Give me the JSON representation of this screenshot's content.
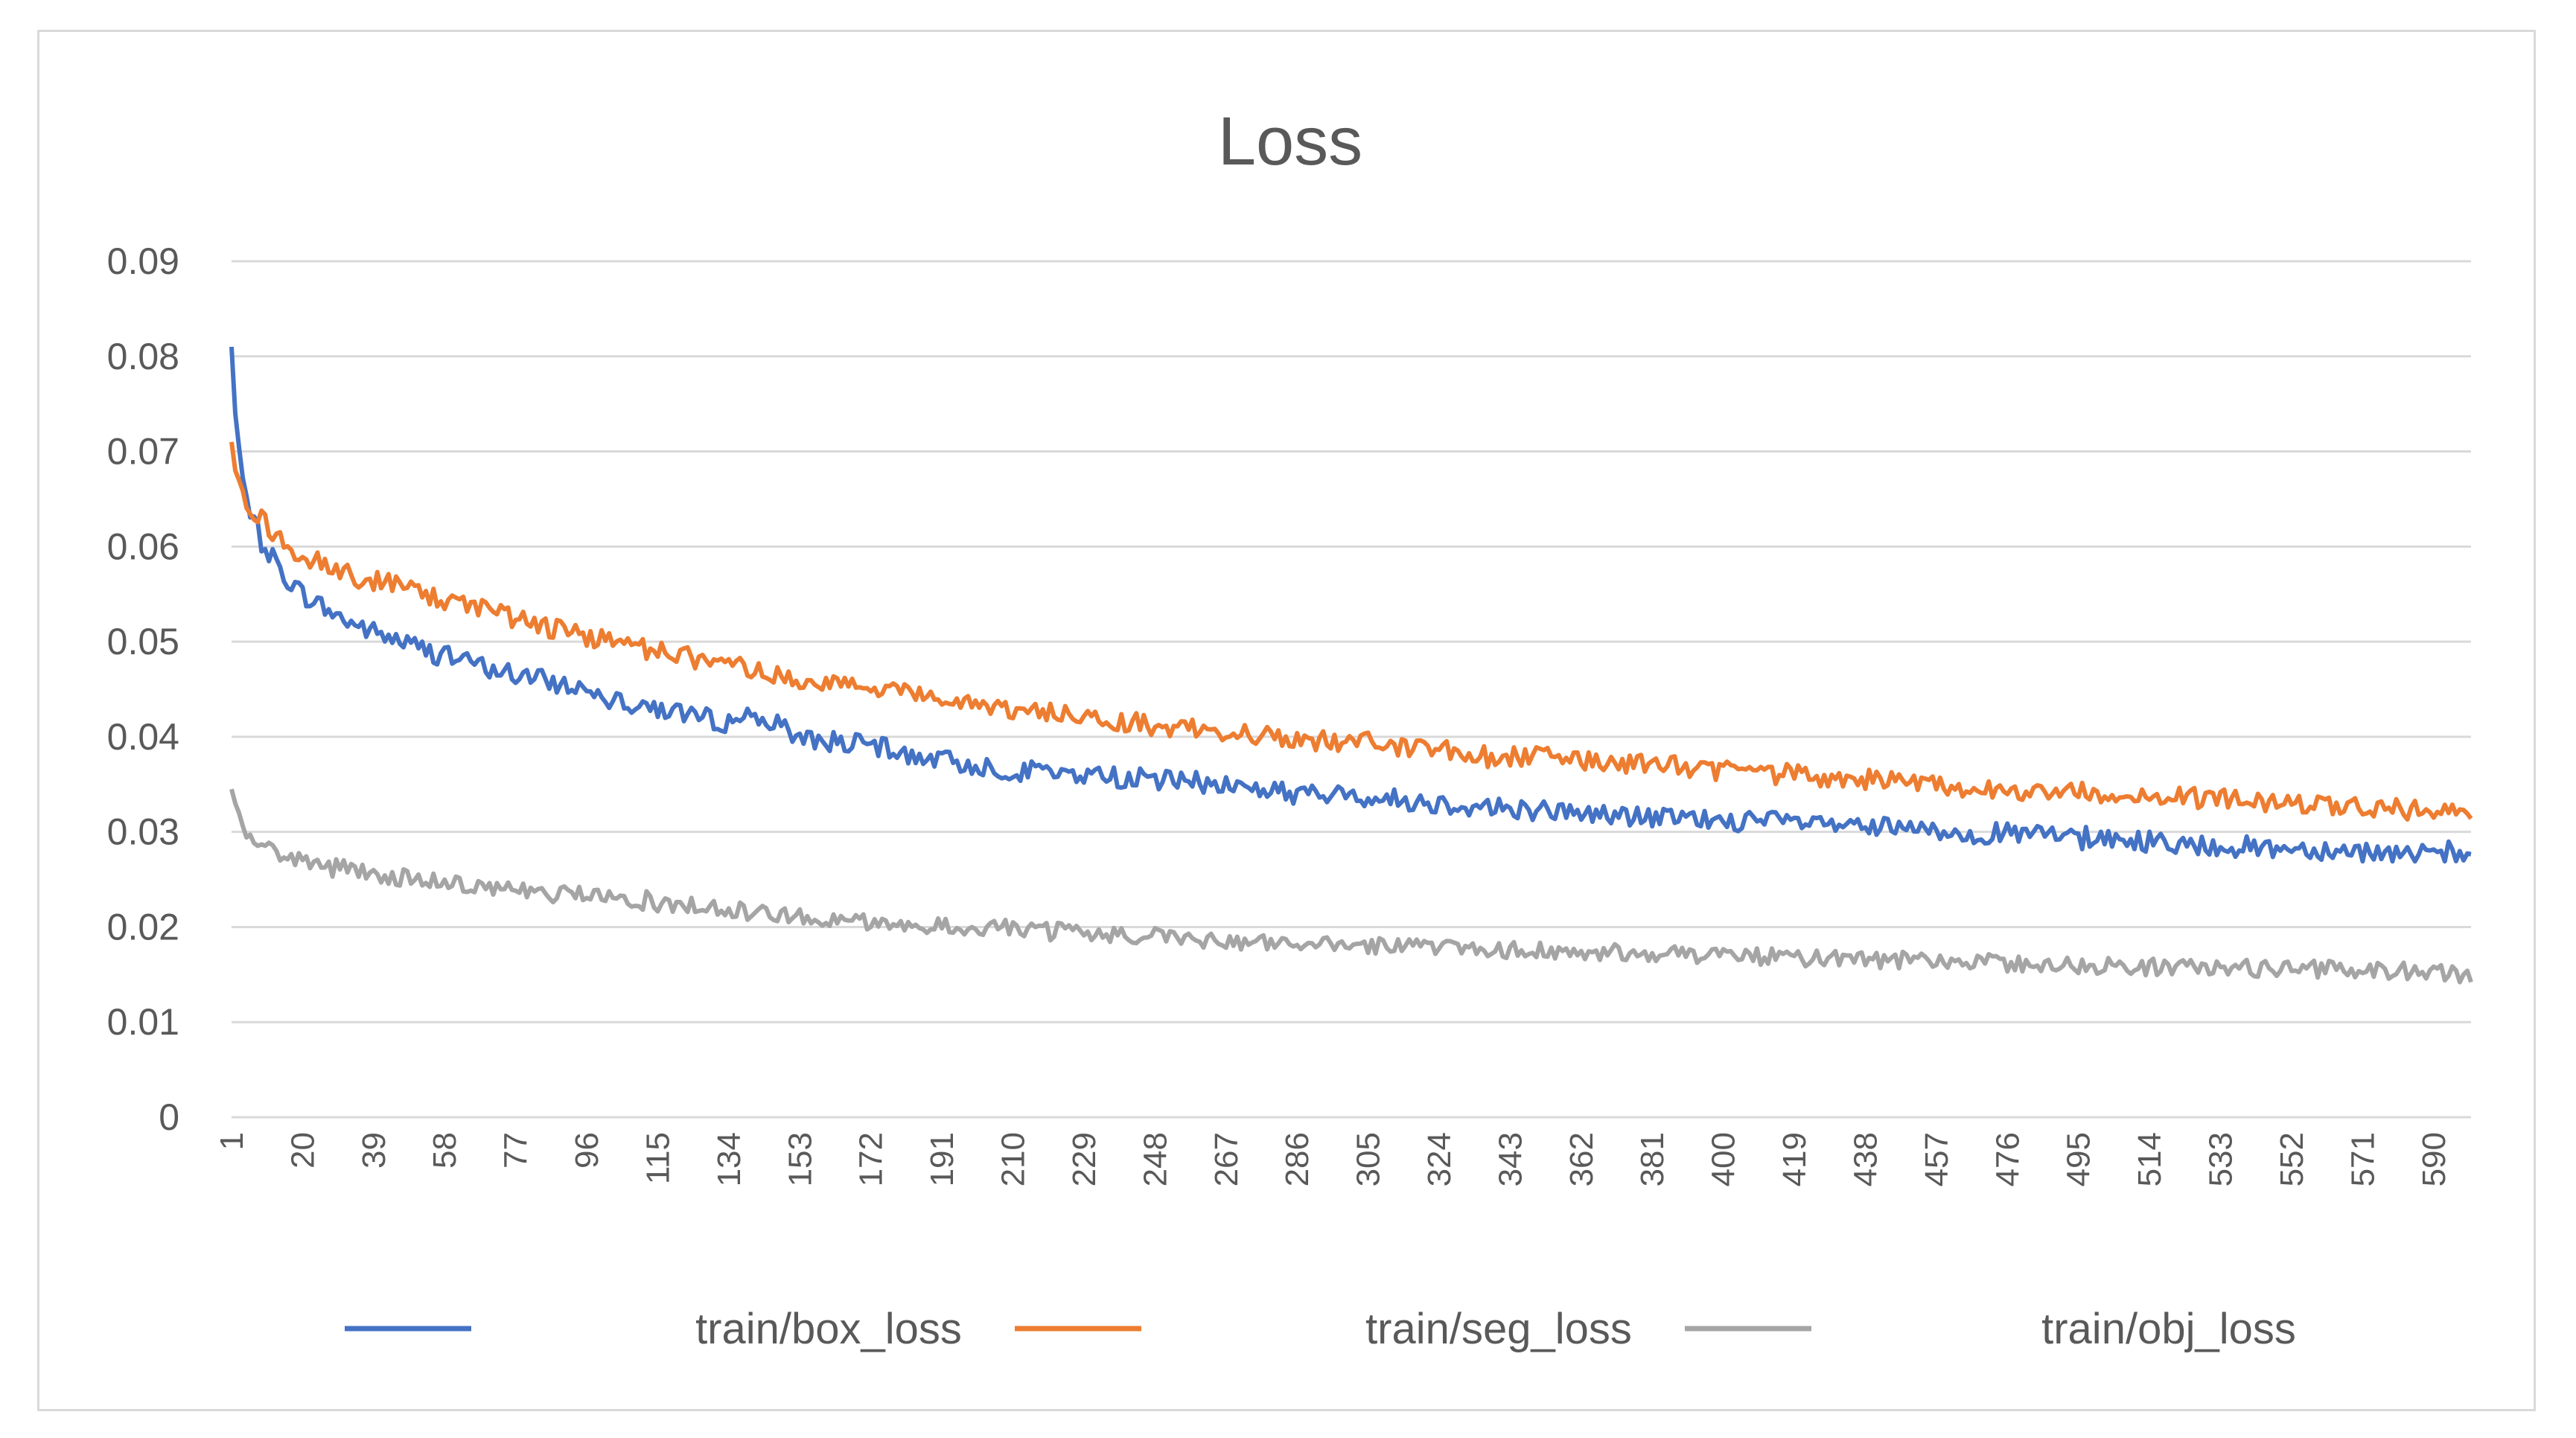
{
  "chart_data": {
    "type": "line",
    "title": "Loss",
    "xlabel": "",
    "ylabel": "",
    "grid": true,
    "legend_position": "bottom",
    "x_range": [
      1,
      600
    ],
    "x_tick_labels": [
      "1",
      "20",
      "39",
      "58",
      "77",
      "96",
      "115",
      "134",
      "153",
      "172",
      "191",
      "210",
      "229",
      "248",
      "267",
      "286",
      "305",
      "324",
      "343",
      "362",
      "381",
      "400",
      "419",
      "438",
      "457",
      "476",
      "495",
      "514",
      "533",
      "552",
      "571",
      "590"
    ],
    "ylim": [
      0,
      0.09
    ],
    "y_tick_labels": [
      "0",
      "0.01",
      "0.02",
      "0.03",
      "0.04",
      "0.05",
      "0.06",
      "0.07",
      "0.08",
      "0.09"
    ],
    "series": [
      {
        "name": "train/box_loss",
        "color": "#4472c4",
        "x": [
          1,
          2,
          4,
          6,
          10,
          15,
          20,
          30,
          39,
          58,
          77,
          96,
          115,
          134,
          140,
          153,
          172,
          191,
          210,
          229,
          248,
          267,
          286,
          305,
          324,
          343,
          362,
          381,
          400,
          419,
          438,
          457,
          476,
          495,
          514,
          533,
          552,
          571,
          590,
          600
        ],
        "values": [
          0.081,
          0.074,
          0.067,
          0.063,
          0.06,
          0.057,
          0.055,
          0.0525,
          0.051,
          0.0485,
          0.0465,
          0.045,
          0.043,
          0.0415,
          0.0425,
          0.04,
          0.039,
          0.0375,
          0.0365,
          0.036,
          0.0355,
          0.035,
          0.034,
          0.0337,
          0.033,
          0.0325,
          0.032,
          0.0315,
          0.0312,
          0.031,
          0.0305,
          0.03,
          0.0298,
          0.0295,
          0.029,
          0.0285,
          0.0283,
          0.028,
          0.0275,
          0.0275
        ]
      },
      {
        "name": "train/seg_loss",
        "color": "#ed7d31",
        "x": [
          1,
          2,
          4,
          6,
          10,
          15,
          20,
          30,
          39,
          58,
          77,
          96,
          115,
          134,
          153,
          172,
          191,
          210,
          229,
          248,
          267,
          286,
          305,
          324,
          343,
          362,
          381,
          400,
          419,
          438,
          457,
          476,
          495,
          514,
          533,
          552,
          571,
          590,
          600
        ],
        "values": [
          0.071,
          0.068,
          0.066,
          0.064,
          0.0625,
          0.06,
          0.059,
          0.0575,
          0.0565,
          0.0545,
          0.0525,
          0.0505,
          0.049,
          0.0475,
          0.046,
          0.045,
          0.044,
          0.043,
          0.042,
          0.0412,
          0.0405,
          0.0398,
          0.0392,
          0.0386,
          0.038,
          0.0375,
          0.037,
          0.0365,
          0.036,
          0.0355,
          0.035,
          0.0345,
          0.0342,
          0.0338,
          0.0334,
          0.033,
          0.0326,
          0.0322,
          0.032
        ]
      },
      {
        "name": "train/obj_loss",
        "color": "#a5a5a5",
        "x": [
          1,
          2,
          4,
          6,
          10,
          15,
          20,
          30,
          39,
          58,
          77,
          96,
          115,
          134,
          153,
          172,
          191,
          210,
          229,
          248,
          267,
          286,
          305,
          324,
          343,
          362,
          381,
          400,
          419,
          438,
          457,
          476,
          495,
          514,
          533,
          552,
          571,
          590,
          600
        ],
        "values": [
          0.0345,
          0.033,
          0.031,
          0.0295,
          0.0285,
          0.0275,
          0.027,
          0.0262,
          0.0255,
          0.0248,
          0.024,
          0.0233,
          0.0225,
          0.0218,
          0.0212,
          0.0205,
          0.02,
          0.0198,
          0.0194,
          0.019,
          0.0186,
          0.0183,
          0.018,
          0.0178,
          0.0176,
          0.0174,
          0.0172,
          0.017,
          0.0168,
          0.0166,
          0.0164,
          0.0162,
          0.016,
          0.0158,
          0.0157,
          0.0156,
          0.0155,
          0.0153,
          0.015
        ]
      }
    ]
  }
}
